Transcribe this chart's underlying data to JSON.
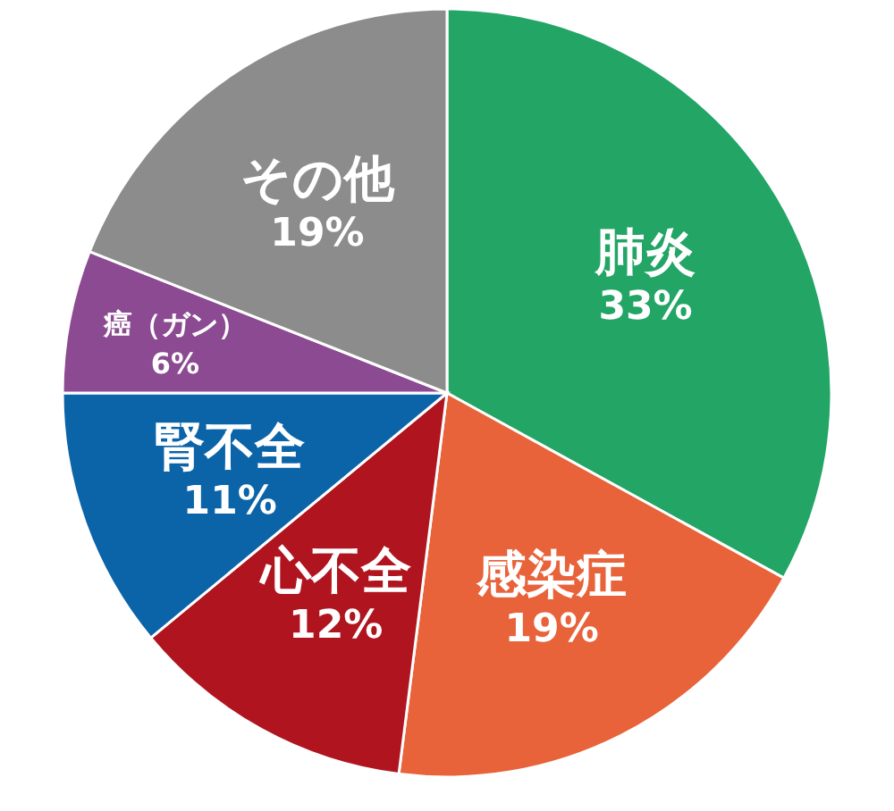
{
  "chart_data": {
    "type": "pie",
    "categories": [
      "肺炎",
      "感染症",
      "心不全",
      "腎不全",
      "癌（ガン）",
      "その他"
    ],
    "values": [
      33,
      19,
      12,
      11,
      6,
      19
    ],
    "colors": [
      "#22a565",
      "#e8623a",
      "#b0151f",
      "#0b63a8",
      "#8b4a91",
      "#8c8c8c"
    ],
    "value_labels": [
      "33%",
      "19%",
      "12%",
      "11%",
      "6%",
      "19%"
    ]
  }
}
